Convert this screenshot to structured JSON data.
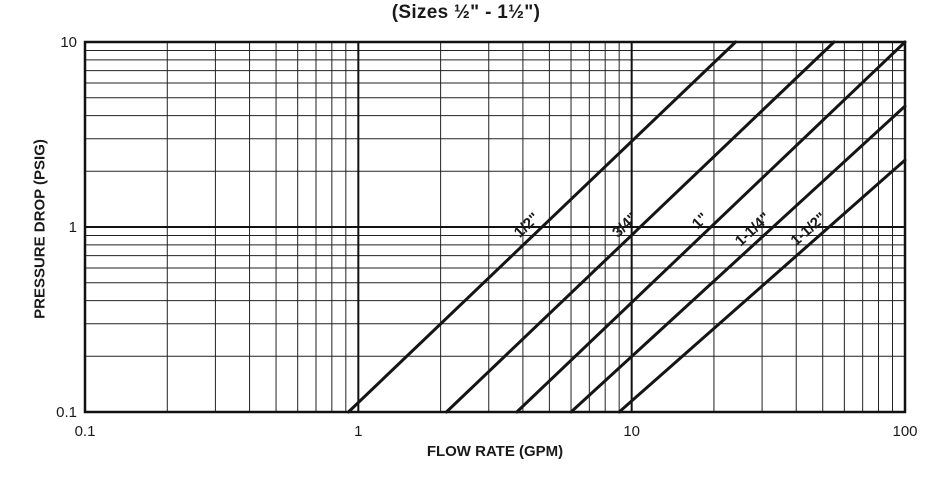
{
  "chart_data": {
    "type": "line",
    "title": "(Sizes ½\" - 1½\")",
    "xlabel": "FLOW RATE (GPM)",
    "ylabel": "PRESSURE DROP (PSIG)",
    "xscale": "log",
    "yscale": "log",
    "xlim": [
      0.1,
      100
    ],
    "ylim": [
      0.1,
      10
    ],
    "xticks": [
      "0.1",
      "1",
      "10",
      "100"
    ],
    "yticks": [
      "0.1",
      "1",
      "10"
    ],
    "grid": true,
    "series": [
      {
        "name": "1/2\"",
        "points": [
          [
            0.92,
            0.1
          ],
          [
            24,
            10
          ]
        ]
      },
      {
        "name": "3/4\"",
        "points": [
          [
            2.1,
            0.1
          ],
          [
            55,
            10
          ]
        ]
      },
      {
        "name": "1\"",
        "points": [
          [
            3.8,
            0.1
          ],
          [
            100,
            10
          ]
        ]
      },
      {
        "name": "1-1/4\"",
        "points": [
          [
            6.0,
            0.1
          ],
          [
            100,
            4.5
          ]
        ]
      },
      {
        "name": "1-1/2\"",
        "points": [
          [
            9.0,
            0.1
          ],
          [
            100,
            2.3
          ]
        ]
      }
    ]
  }
}
